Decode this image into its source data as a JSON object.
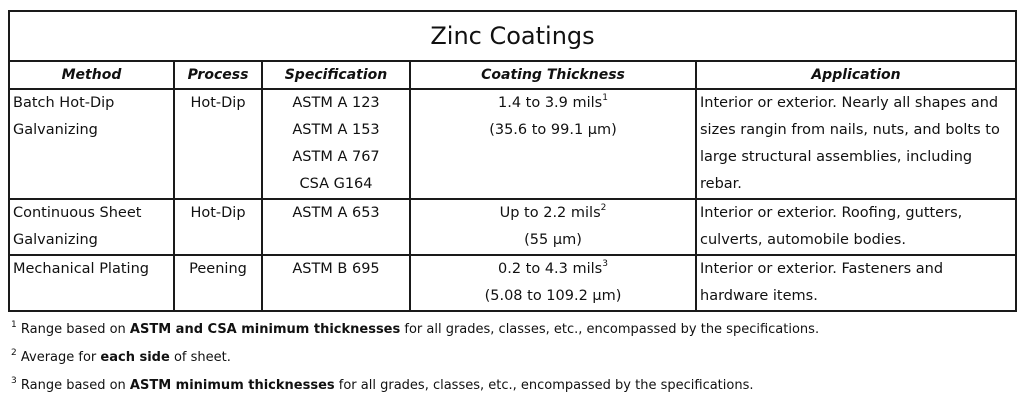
{
  "table": {
    "title": "Zinc Coatings",
    "headers": [
      "Method",
      "Process",
      "Specification",
      "Coating Thickness",
      "Application"
    ],
    "rows": [
      {
        "method": "Batch Hot-Dip Galvanizing",
        "process": "Hot-Dip",
        "specs": [
          "ASTM A 123",
          "ASTM A 153",
          "ASTM A 767",
          "CSA G164"
        ],
        "thickness": "1.4 to 3.9 mils",
        "thickness_note": "1",
        "thickness_metric": "(35.6 to 99.1 µm)",
        "application": "Interior or exterior. Nearly all shapes and sizes rangin from nails, nuts, and bolts to large structural assemblies, including rebar."
      },
      {
        "method": "Continuous Sheet Galvanizing",
        "process": "Hot-Dip",
        "specs": [
          "ASTM A 653"
        ],
        "thickness": "Up to 2.2 mils",
        "thickness_note": "2",
        "thickness_metric": "(55 µm)",
        "application": "Interior or exterior. Roofing, gutters, culverts, automobile bodies."
      },
      {
        "method": "Mechanical Plating",
        "process": "Peening",
        "specs": [
          "ASTM B 695"
        ],
        "thickness": "0.2 to 4.3 mils",
        "thickness_note": "3",
        "thickness_metric": "(5.08 to 109.2 µm)",
        "application": "Interior or exterior. Fasteners and hardware items."
      }
    ]
  },
  "footnotes": [
    {
      "mark": "1",
      "before": "Range based on ",
      "bold": "ASTM and CSA minimum thicknesses",
      "after": " for all grades, classes, etc., encompassed by the specifications."
    },
    {
      "mark": "2",
      "before": "Average for ",
      "bold": "each side",
      "after": " of sheet."
    },
    {
      "mark": "3",
      "before": "Range based on ",
      "bold": "ASTM minimum thicknesses",
      "after": " for all grades, classes, etc., encompassed by the specifications."
    }
  ]
}
